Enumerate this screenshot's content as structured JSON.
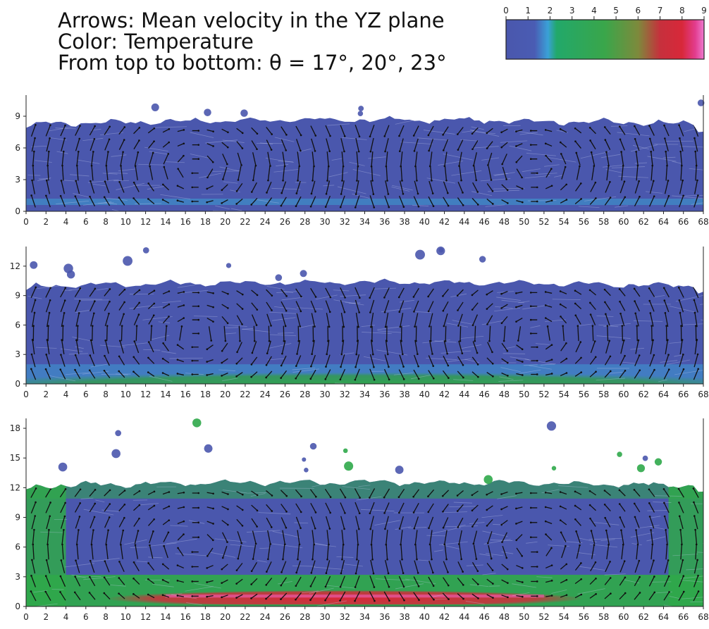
{
  "title": {
    "line1": "Arrows: Mean velocity in the YZ plane",
    "line2": "Color: Temperature",
    "line3": "From top to bottom: θ = 17°, 20°, 23°"
  },
  "colorbar": {
    "ticks": [
      "0",
      "1",
      "2",
      "3",
      "4",
      "5",
      "6",
      "7",
      "8",
      "9"
    ],
    "stops": [
      {
        "v": 0,
        "color": "#4a57ad"
      },
      {
        "v": 1.3,
        "color": "#4a5cb3"
      },
      {
        "v": 1.9,
        "color": "#3aa0d8"
      },
      {
        "v": 2.3,
        "color": "#22a86a"
      },
      {
        "v": 4.5,
        "color": "#3aa64a"
      },
      {
        "v": 6.0,
        "color": "#7d8a3c"
      },
      {
        "v": 7.0,
        "color": "#c6303c"
      },
      {
        "v": 8.0,
        "color": "#d8283a"
      },
      {
        "v": 8.6,
        "color": "#e23c8e"
      },
      {
        "v": 9.0,
        "color": "#ee7ad0"
      }
    ]
  },
  "colors": {
    "fluid": "#4a57ad",
    "arrow": "#111111",
    "warm": "#2fa84a",
    "hot": "#d8283a"
  },
  "chart_data": [
    {
      "type": "heatmap",
      "subtitle": "θ = 17°",
      "xlim": [
        0,
        68
      ],
      "ylim": [
        0,
        11
      ],
      "xticks": [
        "0",
        "2",
        "4",
        "6",
        "8",
        "10",
        "12",
        "14",
        "16",
        "18",
        "20",
        "22",
        "24",
        "26",
        "28",
        "30",
        "32",
        "34",
        "36",
        "38",
        "40",
        "42",
        "44",
        "46",
        "48",
        "50",
        "52",
        "54",
        "56",
        "58",
        "60",
        "62",
        "64",
        "66",
        "68"
      ],
      "yticks": [
        "0",
        "3",
        "6",
        "9"
      ],
      "surface_height": 8.3,
      "heated_layer": 0
    },
    {
      "type": "heatmap",
      "subtitle": "θ = 20°",
      "xlim": [
        0,
        68
      ],
      "ylim": [
        0,
        14
      ],
      "xticks": [
        "0",
        "2",
        "4",
        "6",
        "8",
        "10",
        "12",
        "14",
        "16",
        "18",
        "20",
        "22",
        "24",
        "26",
        "28",
        "30",
        "32",
        "34",
        "36",
        "38",
        "40",
        "42",
        "44",
        "46",
        "48",
        "50",
        "52",
        "54",
        "56",
        "58",
        "60",
        "62",
        "64",
        "66",
        "68"
      ],
      "yticks": [
        "0",
        "3",
        "6",
        "9",
        "12"
      ],
      "surface_height": 10.0,
      "heated_layer": 1
    },
    {
      "type": "heatmap",
      "subtitle": "θ = 23°",
      "xlim": [
        0,
        68
      ],
      "ylim": [
        0,
        19
      ],
      "xticks": [
        "0",
        "2",
        "4",
        "6",
        "8",
        "10",
        "12",
        "14",
        "16",
        "18",
        "20",
        "22",
        "24",
        "26",
        "28",
        "30",
        "32",
        "34",
        "36",
        "38",
        "40",
        "42",
        "44",
        "46",
        "48",
        "50",
        "52",
        "54",
        "56",
        "58",
        "60",
        "62",
        "64",
        "66",
        "68"
      ],
      "yticks": [
        "0",
        "3",
        "6",
        "9",
        "12",
        "15",
        "18"
      ],
      "surface_height": 12.2,
      "heated_layer": 2
    }
  ]
}
